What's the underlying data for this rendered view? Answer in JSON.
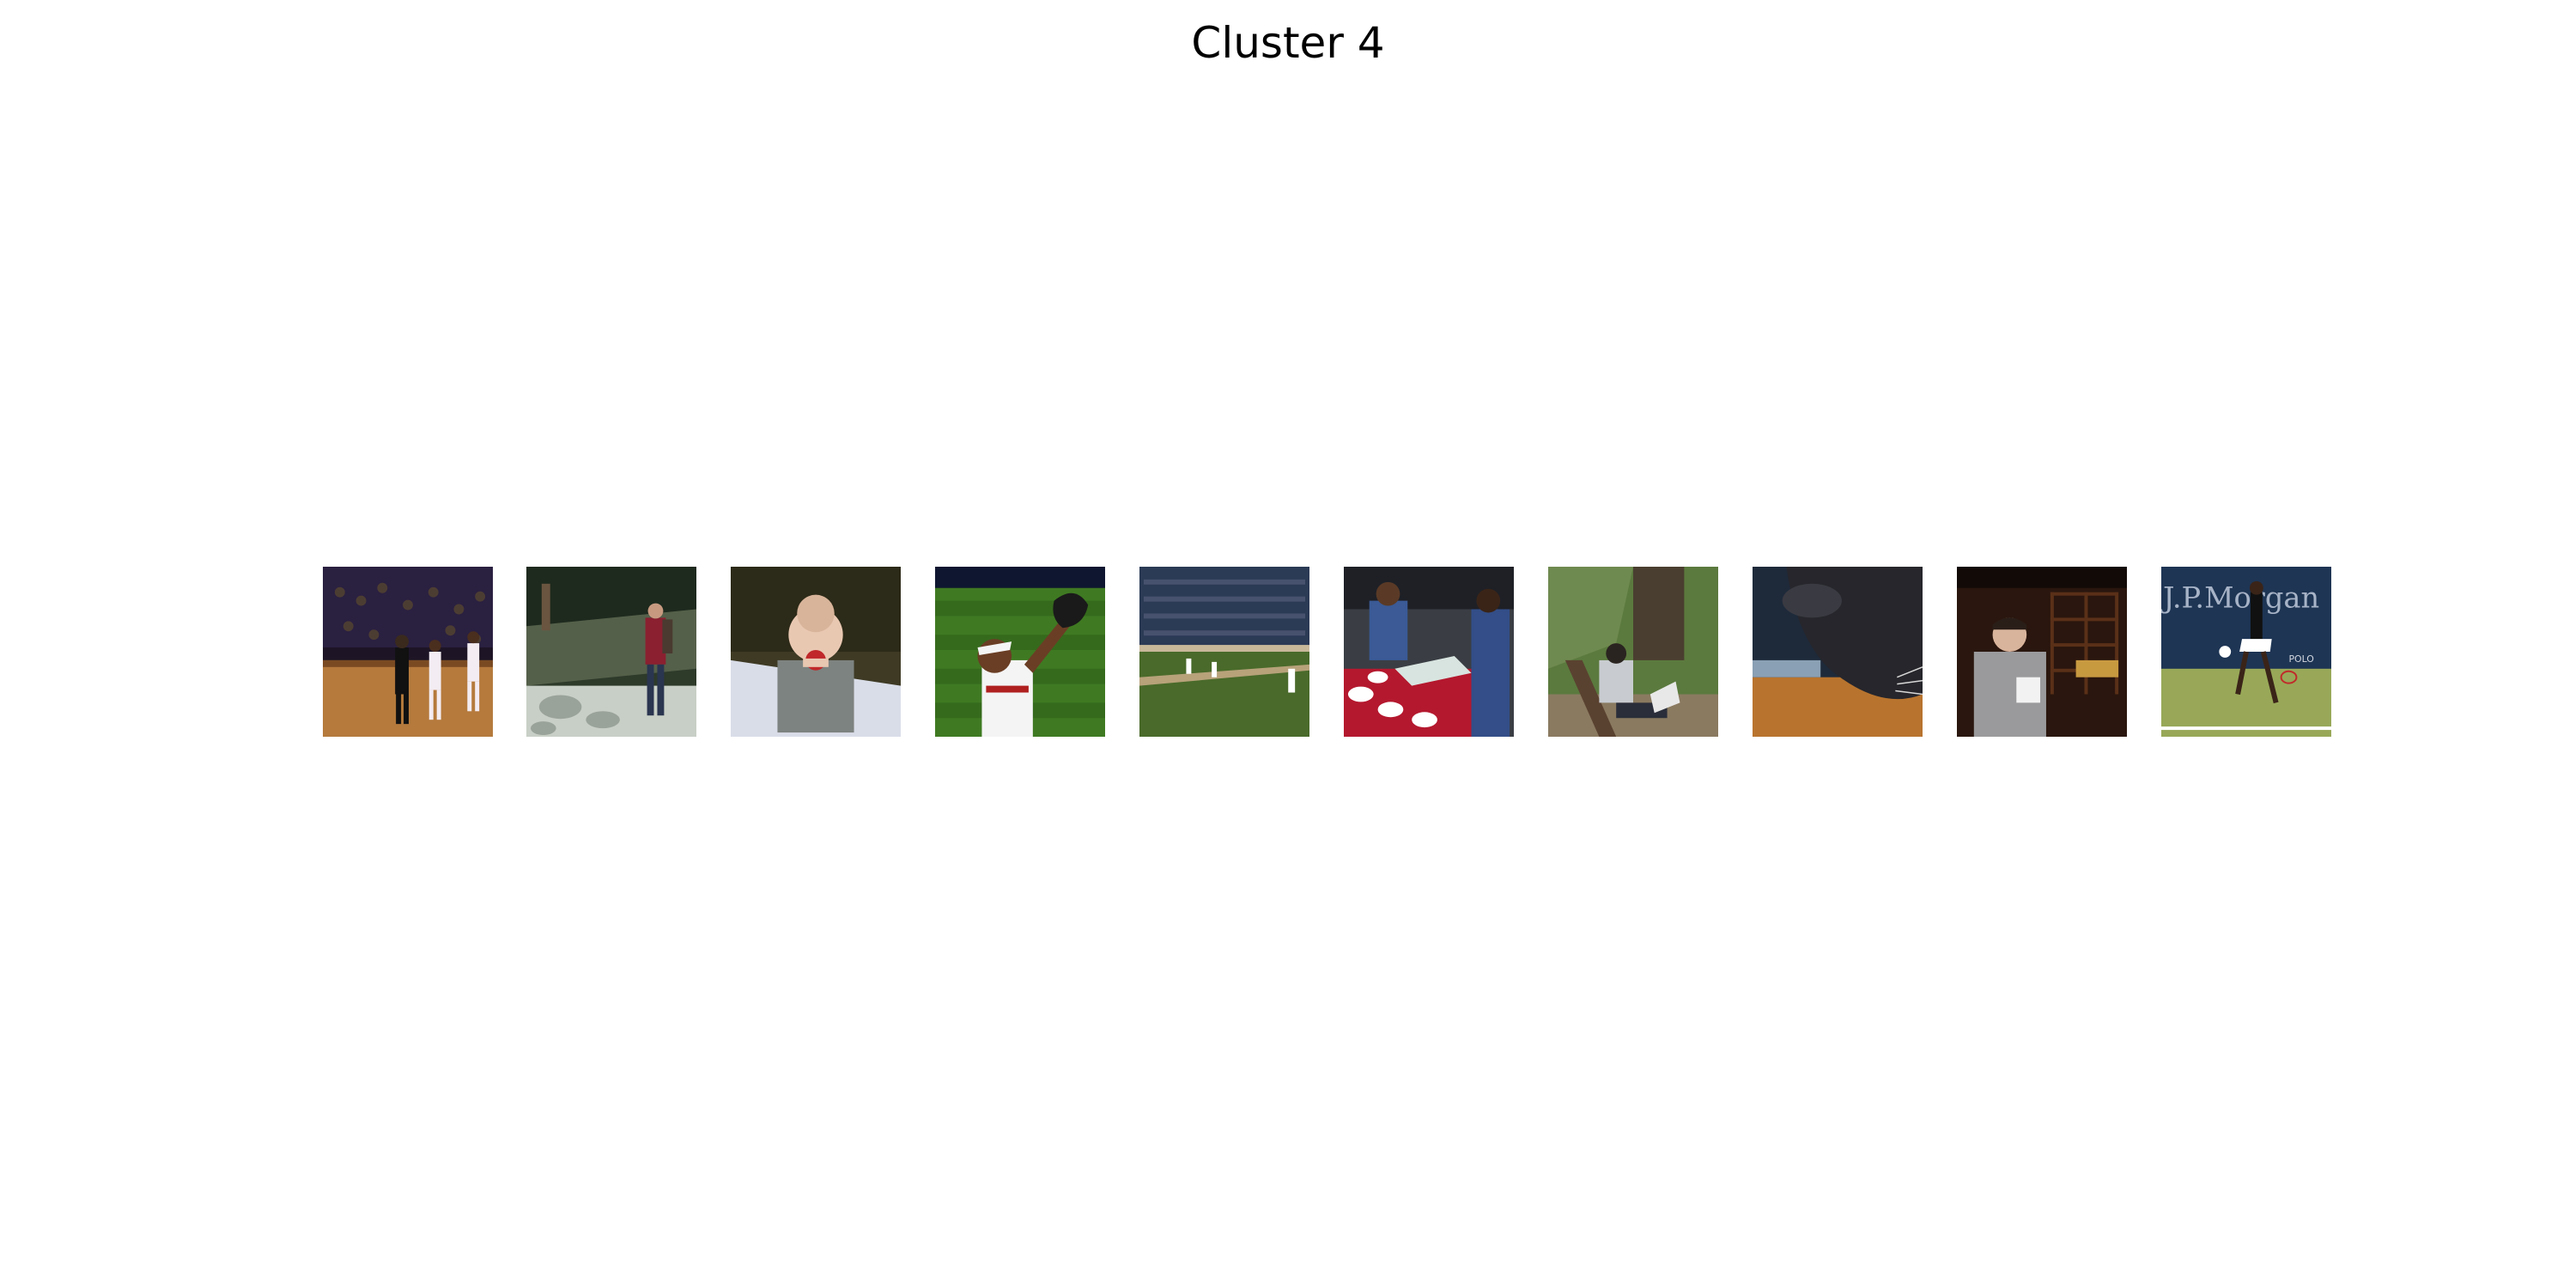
{
  "title": "Cluster 4",
  "images": [
    {
      "subject": "basketball-players-on-court"
    },
    {
      "subject": "hiker-with-backpack-by-stream"
    },
    {
      "subject": "baby-eating-apple-on-blanket"
    },
    {
      "subject": "baseball-player-catching-ball"
    },
    {
      "subject": "baseball-stadium-field"
    },
    {
      "subject": "sailors-serving-food-at-table"
    },
    {
      "subject": "person-on-bench-with-laptop"
    },
    {
      "subject": "cat-closeup-on-table"
    },
    {
      "subject": "man-in-wine-cellar"
    },
    {
      "subject": "tennis-player-serving"
    }
  ],
  "thumbnail_texts": {
    "tennis_banner": "J.P.Morgan",
    "tennis_sub": "POLO"
  },
  "colors": {
    "background": "#ffffff",
    "title": "#000000"
  }
}
